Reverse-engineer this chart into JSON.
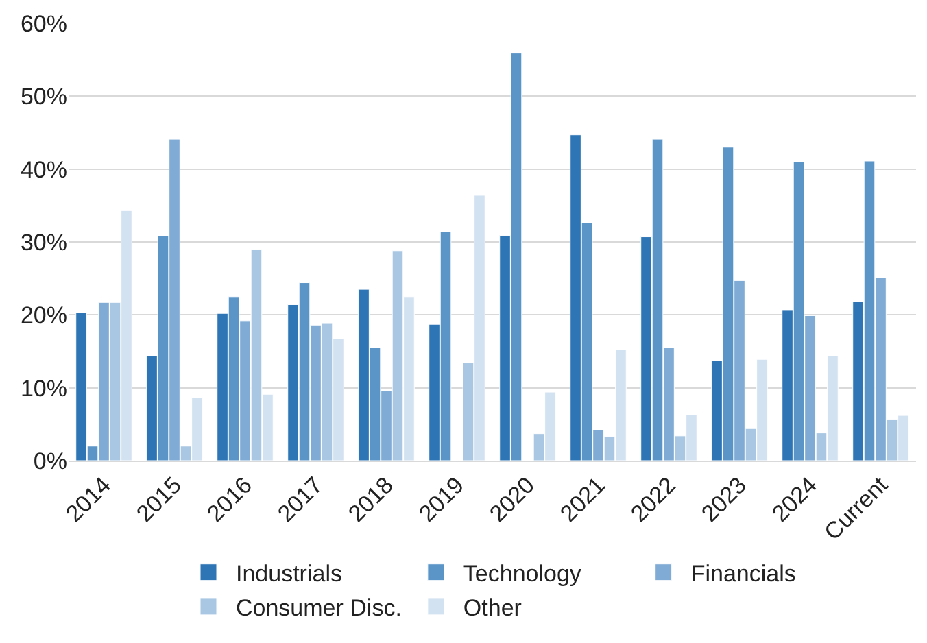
{
  "chart_data": {
    "type": "bar",
    "categories": [
      "2014",
      "2015",
      "2016",
      "2017",
      "2018",
      "2019",
      "2020",
      "2021",
      "2022",
      "2023",
      "2024",
      "Current"
    ],
    "series": [
      {
        "name": "Industrials",
        "color": "#2e75b6",
        "values": [
          20.3,
          14.4,
          20.2,
          21.4,
          23.5,
          18.7,
          30.9,
          44.7,
          30.7,
          13.7,
          20.7,
          21.8
        ]
      },
      {
        "name": "Technology",
        "color": "#5b95c8",
        "values": [
          2.0,
          30.8,
          22.5,
          24.4,
          15.5,
          31.4,
          55.9,
          32.6,
          44.1,
          43.0,
          41.0,
          41.1
        ]
      },
      {
        "name": "Financials",
        "color": "#7fabd4",
        "values": [
          21.7,
          44.1,
          19.2,
          18.6,
          9.6,
          null,
          null,
          4.2,
          15.5,
          24.7,
          19.9,
          25.1
        ]
      },
      {
        "name": "Consumer Disc.",
        "color": "#a9c7e3",
        "values": [
          21.7,
          2.0,
          29.0,
          18.9,
          28.8,
          13.4,
          3.7,
          3.3,
          3.4,
          4.4,
          3.8,
          5.7
        ]
      },
      {
        "name": "Other",
        "color": "#d3e2f1",
        "values": [
          34.3,
          8.7,
          9.1,
          16.7,
          22.5,
          36.4,
          9.4,
          15.2,
          6.3,
          13.9,
          14.4,
          6.2
        ]
      }
    ],
    "ylim": [
      0,
      60
    ],
    "yticks": [
      {
        "value": 0,
        "label": "0%"
      },
      {
        "value": 10,
        "label": "10%"
      },
      {
        "value": 20,
        "label": "20%"
      },
      {
        "value": 30,
        "label": "30%"
      },
      {
        "value": 40,
        "label": "40%"
      },
      {
        "value": 50,
        "label": "50%"
      },
      {
        "value": 60,
        "label": "60%"
      }
    ],
    "grid": "y",
    "legend": "bottom"
  }
}
